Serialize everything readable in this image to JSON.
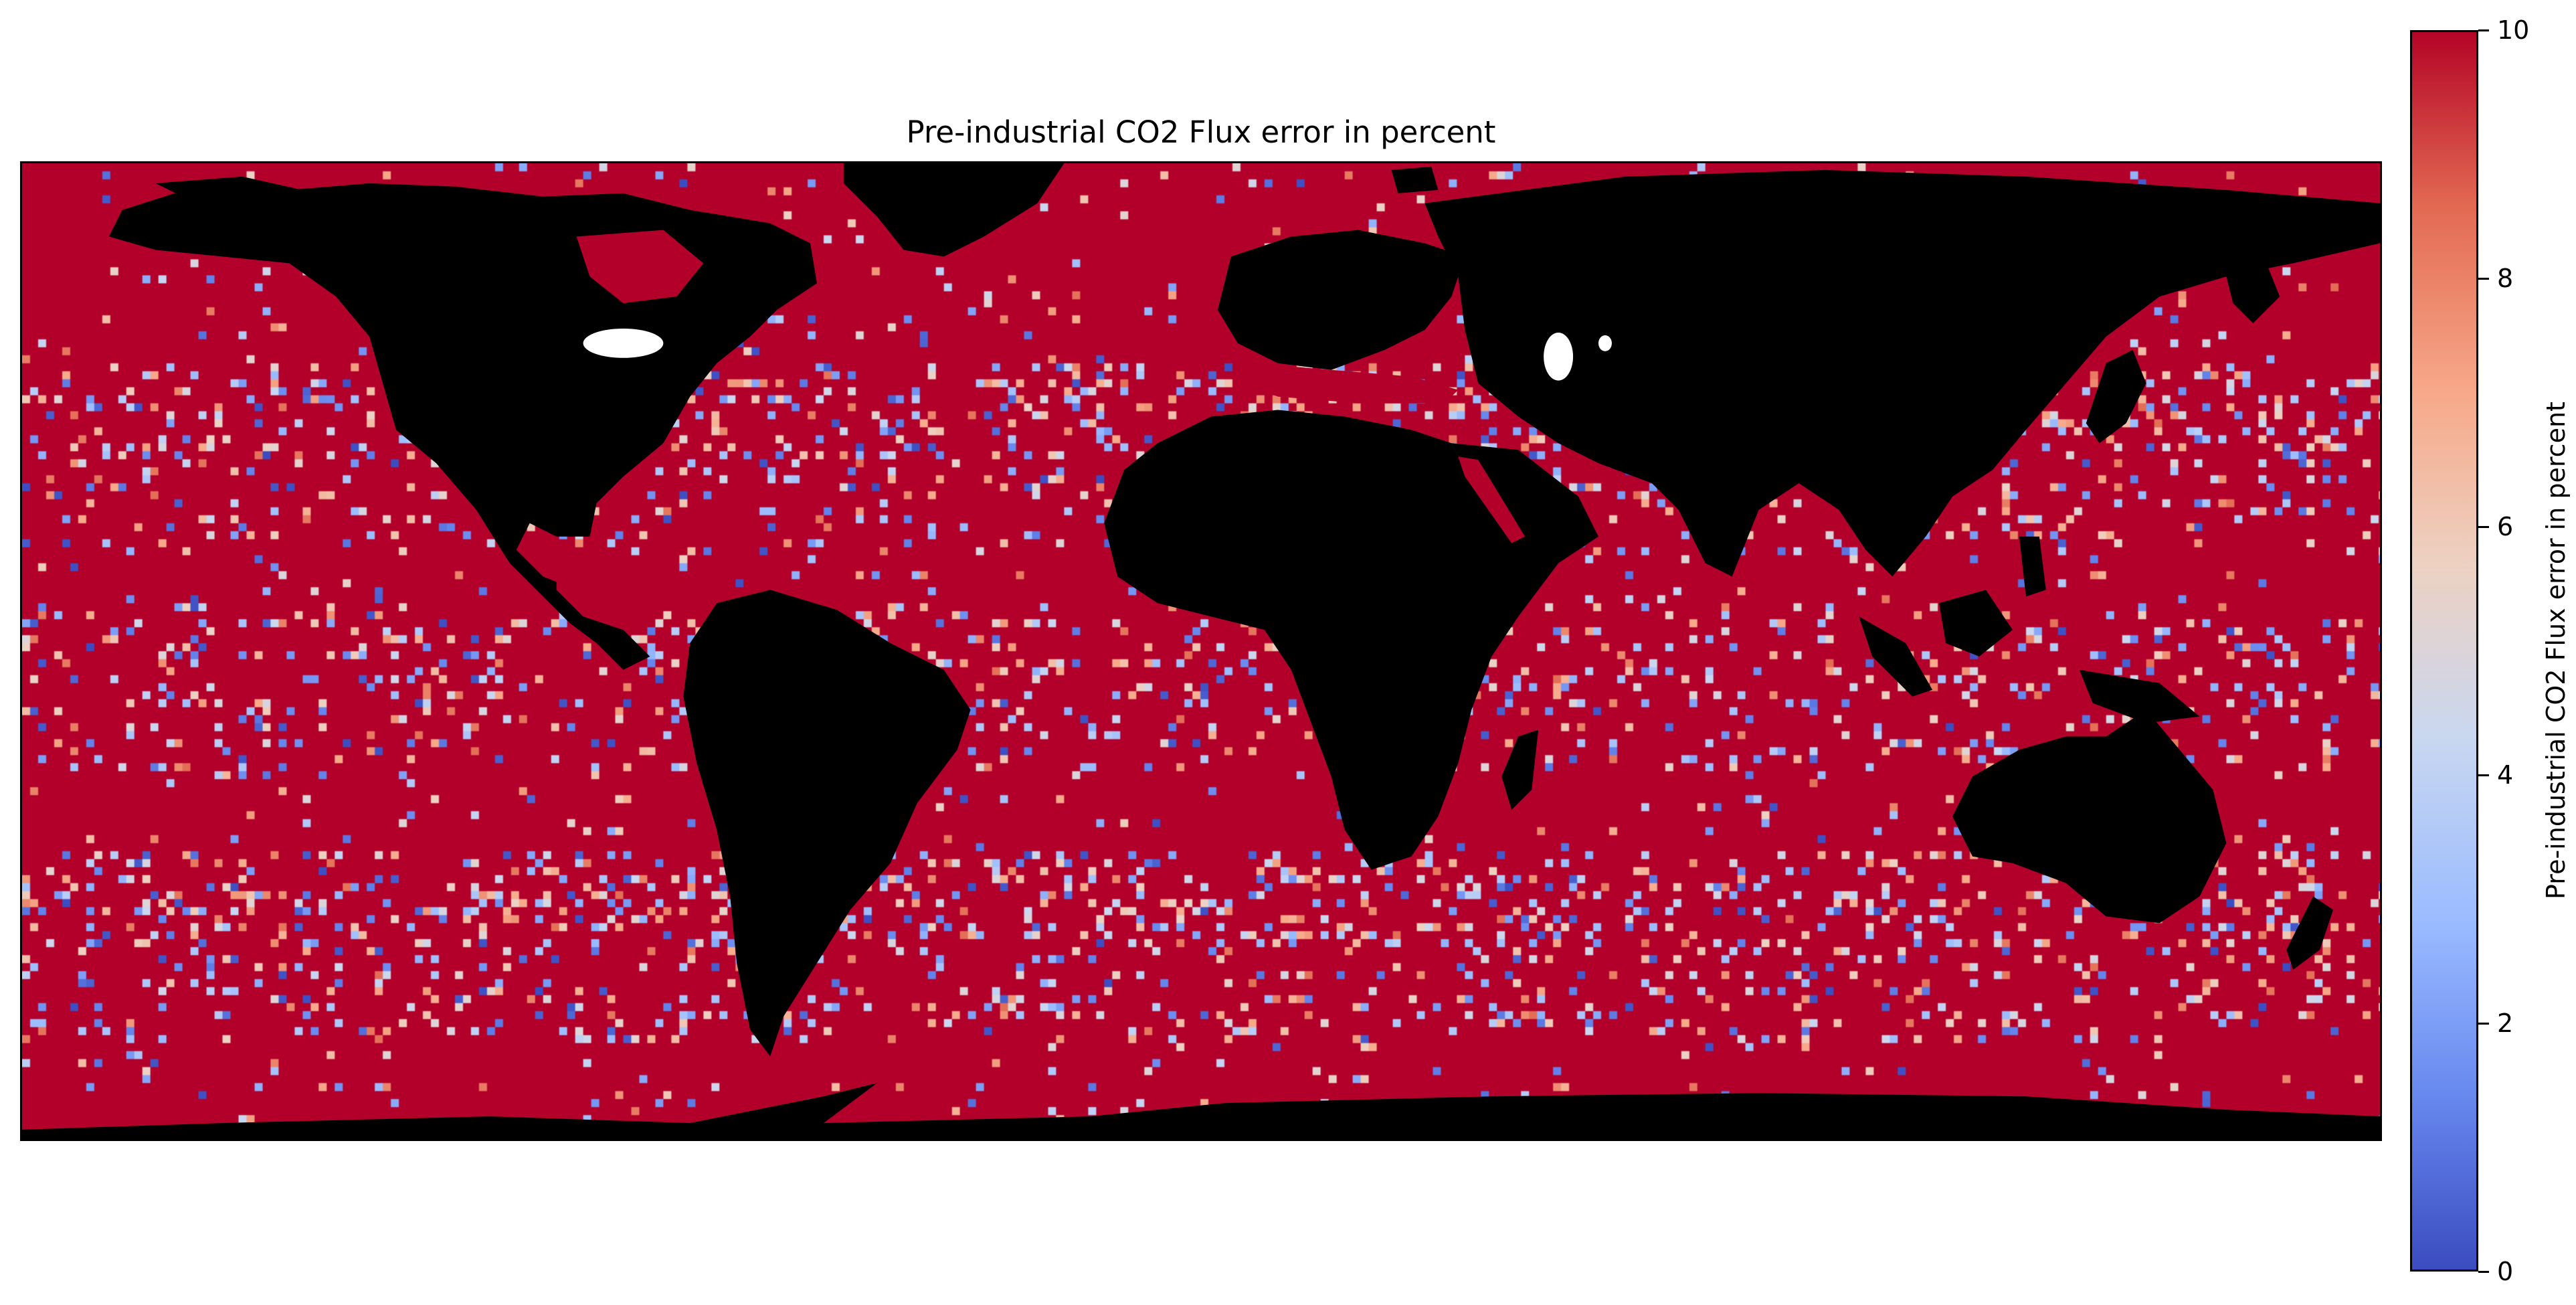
{
  "title": "Pre-industrial CO2 Flux error in percent",
  "colorbar": {
    "label": "Pre-industrial CO2 Flux error in percent",
    "colormap": "coolwarm",
    "min": 0,
    "max": 10,
    "ticks": [
      "0",
      "2",
      "4",
      "6",
      "8",
      "10"
    ]
  },
  "colors": {
    "land": "#000000",
    "saturated_ocean": "#b2002a",
    "inland_water": "#ffffff"
  },
  "map": {
    "projection": "plate carree",
    "extent_lon": [
      -180,
      180
    ],
    "extent_lat": [
      -90,
      90
    ],
    "values_above_max_shown_as": "dark red"
  }
}
